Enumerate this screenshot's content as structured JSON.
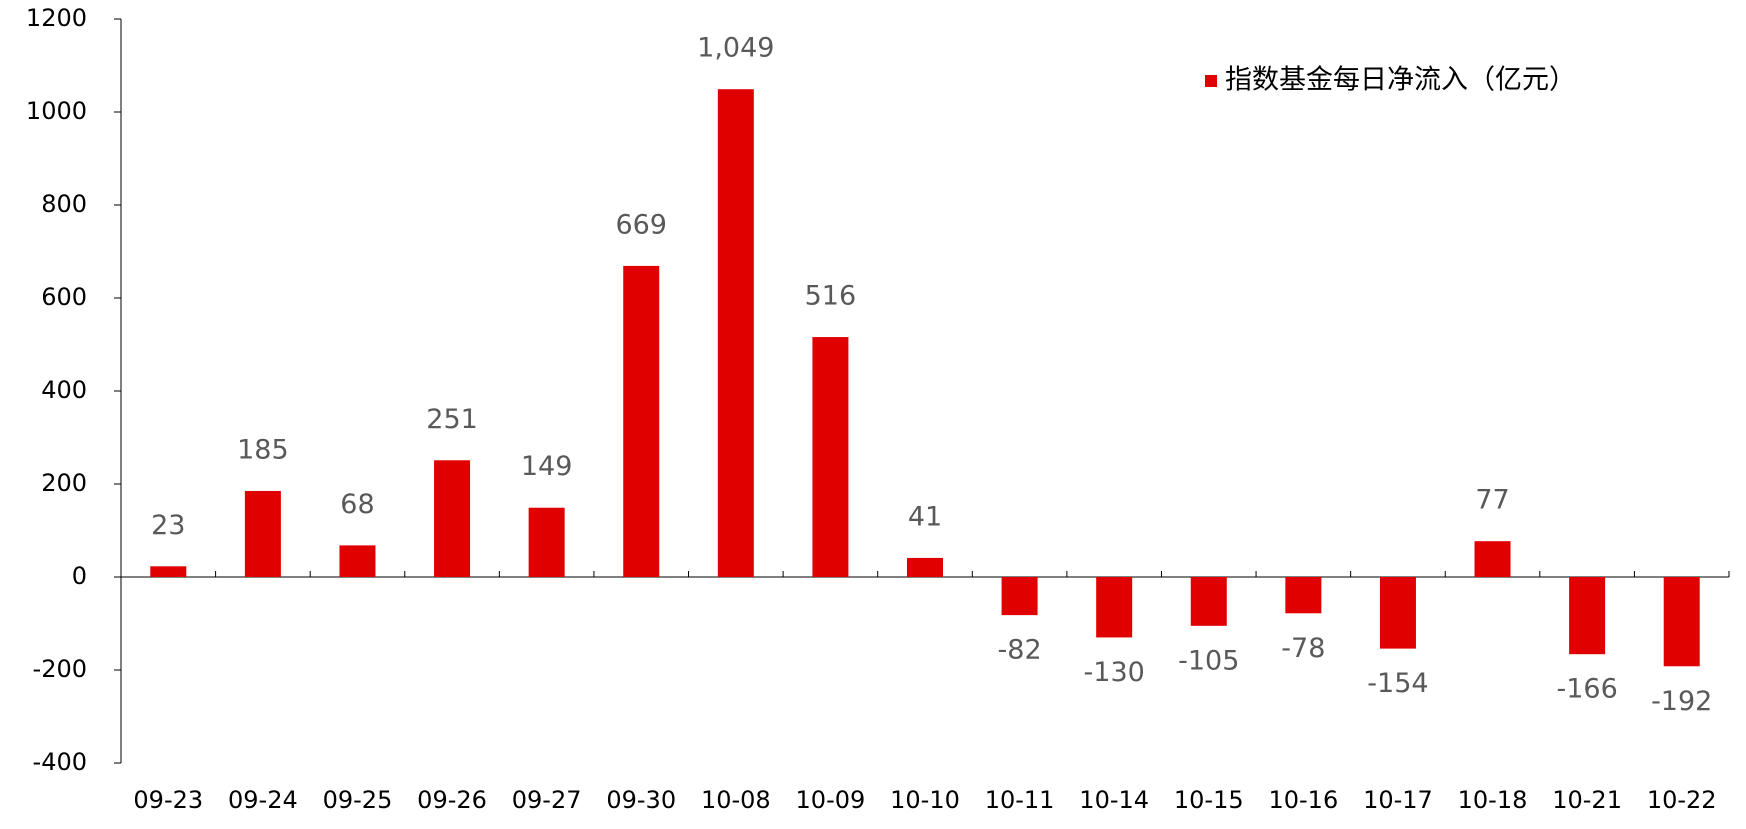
{
  "chart_data": {
    "type": "bar",
    "categories": [
      "09-23",
      "09-24",
      "09-25",
      "09-26",
      "09-27",
      "09-30",
      "10-08",
      "10-09",
      "10-10",
      "10-11",
      "10-14",
      "10-15",
      "10-16",
      "10-17",
      "10-18",
      "10-21",
      "10-22"
    ],
    "series": [
      {
        "name": "指数基金每日净流入（亿元）",
        "color": "#e00000",
        "values": [
          23,
          185,
          68,
          251,
          149,
          669,
          1049,
          516,
          41,
          -82,
          -130,
          -105,
          -78,
          -154,
          77,
          -166,
          -192
        ],
        "value_labels": [
          "23",
          "185",
          "68",
          "251",
          "149",
          "669",
          "1,049",
          "516",
          "41",
          "-82",
          "-130",
          "-105",
          "-78",
          "-154",
          "77",
          "-166",
          "-192"
        ]
      }
    ],
    "ylim": [
      -400,
      1200
    ],
    "yticks": [
      -400,
      -200,
      0,
      200,
      400,
      600,
      800,
      1000,
      1200
    ],
    "grid": false,
    "legend": "top-right"
  }
}
